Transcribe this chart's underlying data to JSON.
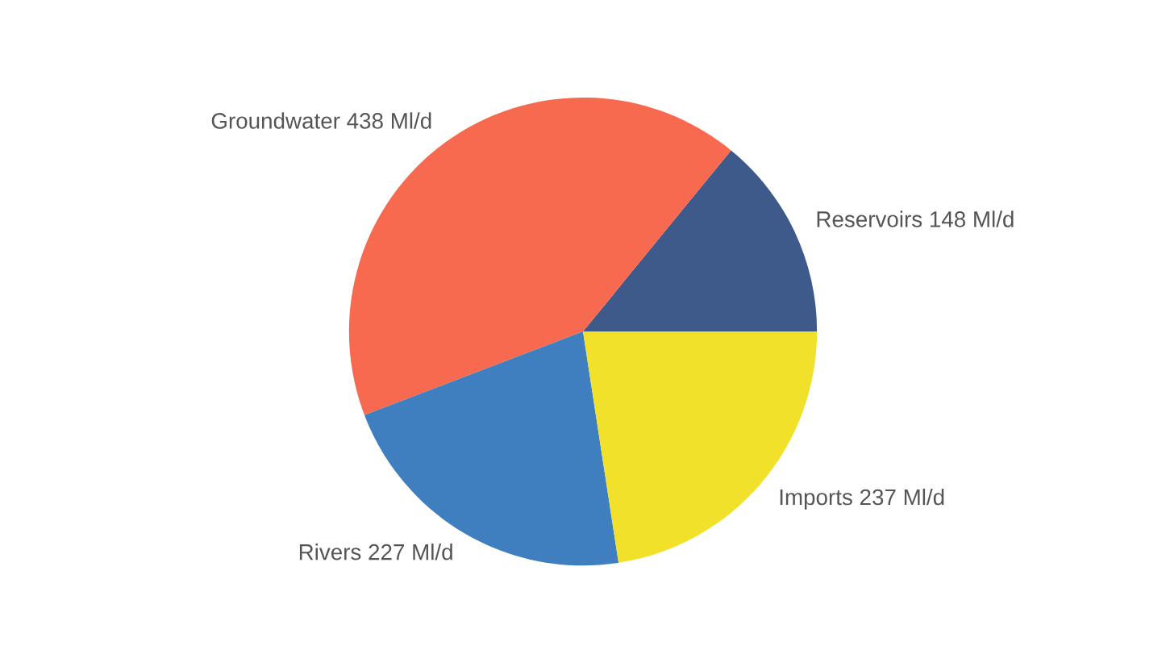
{
  "chart_data": {
    "type": "pie",
    "categories": [
      "Reservoirs",
      "Groundwater",
      "Rivers",
      "Imports"
    ],
    "values": [
      148,
      438,
      227,
      237
    ],
    "value_labels": [
      "148 Ml/d",
      "438 Ml/d",
      "227 Ml/d",
      "237 Ml/d"
    ],
    "colors": [
      "#3e5a8a",
      "#f86a50",
      "#3f7fbf",
      "#f2e12a"
    ]
  }
}
